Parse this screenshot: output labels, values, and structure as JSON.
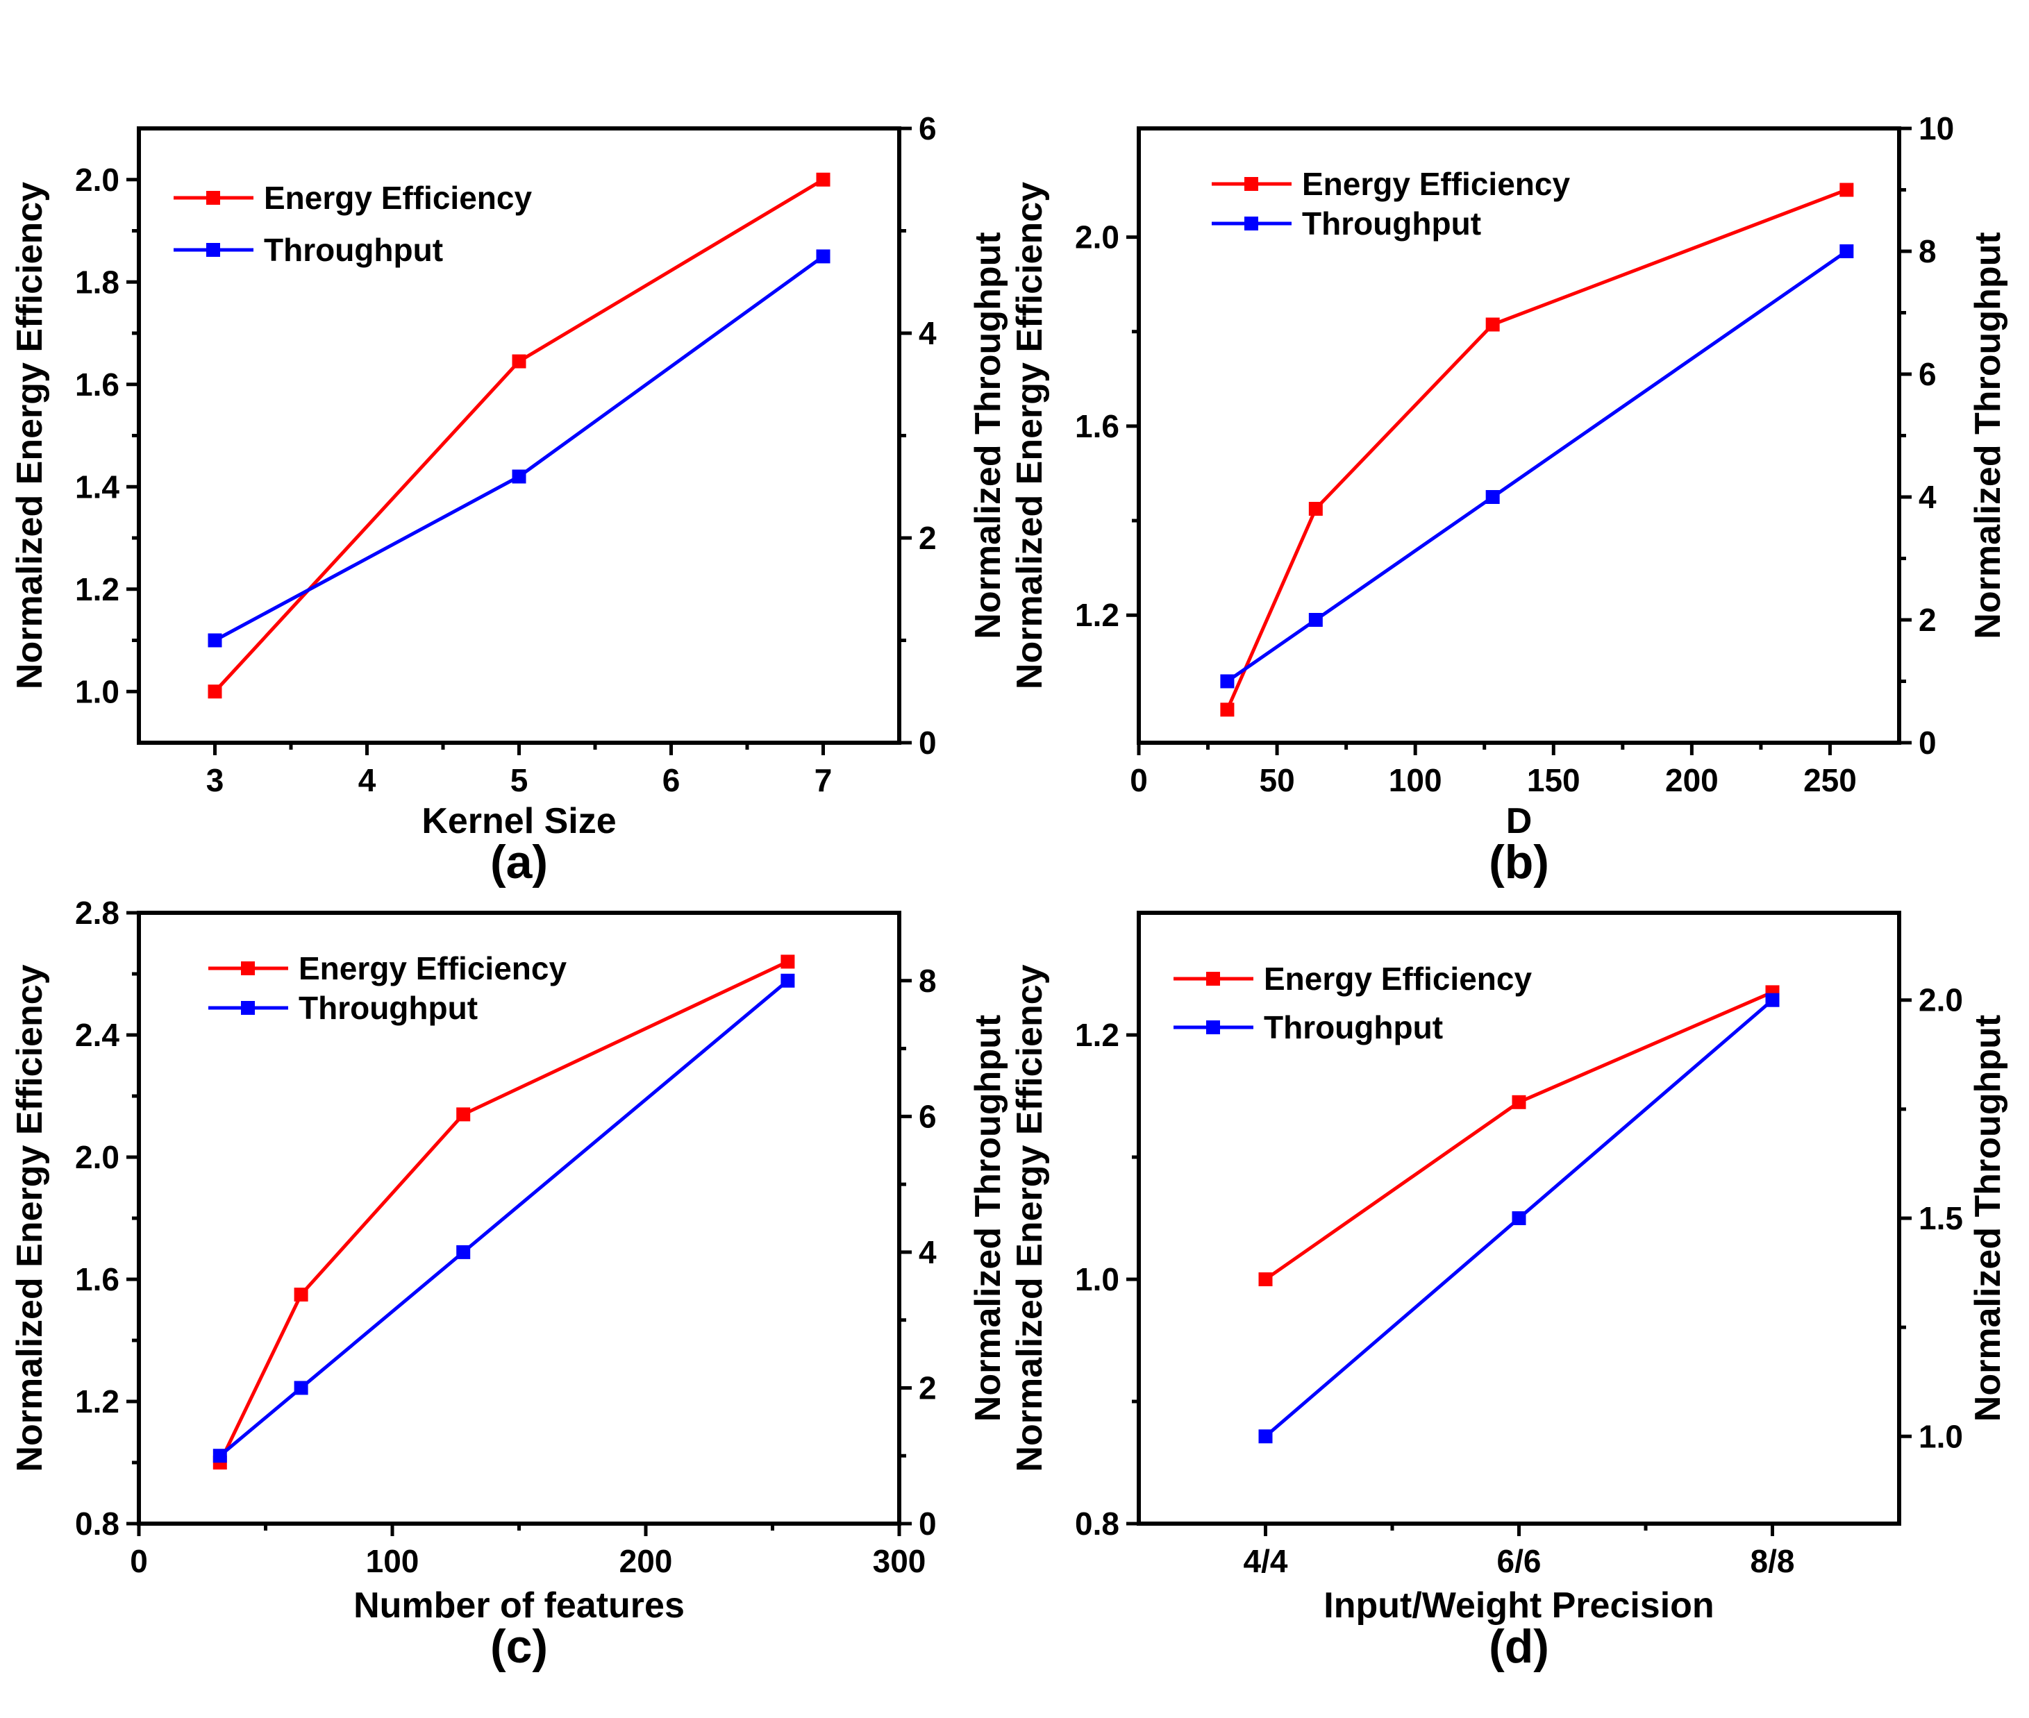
{
  "colors": {
    "energy": "#ff0000",
    "throughput": "#0000ff",
    "axis": "#000000"
  },
  "chart_data": [
    {
      "type": "line",
      "panel_label": "(a)",
      "xlabel": "Kernel Size",
      "ylabel_left": "Normalized Energy Efficiency",
      "ylabel_right": "Normalized Throughput",
      "xlim": [
        2.5,
        7.5
      ],
      "x_ticks": [
        3,
        4,
        5,
        6,
        7
      ],
      "x_tick_labels": [
        "3",
        "4",
        "5",
        "6",
        "7"
      ],
      "ylim_left": [
        0.9,
        2.1
      ],
      "y_ticks_left": [
        1.0,
        1.2,
        1.4,
        1.6,
        1.8,
        2.0
      ],
      "y_tick_labels_left": [
        "1.0",
        "1.2",
        "1.4",
        "1.6",
        "1.8",
        "2.0"
      ],
      "ylim_right": [
        0,
        6
      ],
      "y_ticks_right": [
        0,
        2,
        4,
        6
      ],
      "y_tick_labels_right": [
        "0",
        "2",
        "4",
        "6"
      ],
      "legend": [
        "Energy Efficiency",
        "Throughput"
      ],
      "series": [
        {
          "name": "Energy Efficiency",
          "axis": "left",
          "color": "#ff0000",
          "x": [
            3,
            5,
            7
          ],
          "values": [
            1.0,
            1.645,
            2.0
          ]
        },
        {
          "name": "Throughput",
          "axis": "right",
          "color": "#0000ff",
          "x": [
            3,
            5,
            7
          ],
          "values": [
            1.0,
            2.6,
            4.75
          ]
        }
      ]
    },
    {
      "type": "line",
      "panel_label": "(b)",
      "xlabel": "D",
      "ylabel_left": "Normalized Energy Efficiency",
      "ylabel_right": "Normalized Throughput",
      "xlim": [
        0,
        275
      ],
      "x_ticks": [
        0,
        50,
        100,
        150,
        200,
        250
      ],
      "x_tick_labels": [
        "0",
        "50",
        "100",
        "150",
        "200",
        "250"
      ],
      "ylim_left": [
        0.93,
        2.23
      ],
      "y_ticks_left": [
        1.2,
        1.6,
        2.0
      ],
      "y_tick_labels_left": [
        "1.2",
        "1.6",
        "2.0"
      ],
      "ylim_right": [
        0,
        10
      ],
      "y_ticks_right": [
        0,
        2,
        4,
        6,
        8,
        10
      ],
      "y_tick_labels_right": [
        "0",
        "2",
        "4",
        "6",
        "8",
        "10"
      ],
      "legend": [
        "Energy Efficiency",
        "Throughput"
      ],
      "series": [
        {
          "name": "Energy Efficiency",
          "axis": "left",
          "color": "#ff0000",
          "x": [
            32,
            64,
            128,
            256
          ],
          "values": [
            1.0,
            1.425,
            1.815,
            2.1
          ]
        },
        {
          "name": "Throughput",
          "axis": "right",
          "color": "#0000ff",
          "x": [
            32,
            64,
            128,
            256
          ],
          "values": [
            1.0,
            2.0,
            4.0,
            8.0
          ]
        }
      ]
    },
    {
      "type": "line",
      "panel_label": "(c)",
      "xlabel": "Number of features",
      "ylabel_left": "Normalized Energy Efficiency",
      "ylabel_right": "Normalized Throughput",
      "xlim": [
        0,
        300
      ],
      "x_ticks": [
        0,
        100,
        200,
        300
      ],
      "x_tick_labels": [
        "0",
        "100",
        "200",
        "300"
      ],
      "ylim_left": [
        0.8,
        2.8
      ],
      "y_ticks_left": [
        0.8,
        1.2,
        1.6,
        2.0,
        2.4,
        2.8
      ],
      "y_tick_labels_left": [
        "0.8",
        "1.2",
        "1.6",
        "2.0",
        "2.4",
        "2.8"
      ],
      "ylim_right": [
        0,
        9
      ],
      "y_ticks_right": [
        0,
        2,
        4,
        6,
        8
      ],
      "y_tick_labels_right": [
        "0",
        "2",
        "4",
        "6",
        "8"
      ],
      "legend": [
        "Energy Efficiency",
        "Throughput"
      ],
      "series": [
        {
          "name": "Energy Efficiency",
          "axis": "left",
          "color": "#ff0000",
          "x": [
            32,
            64,
            128,
            256
          ],
          "values": [
            1.0,
            1.55,
            2.14,
            2.64
          ]
        },
        {
          "name": "Throughput",
          "axis": "right",
          "color": "#0000ff",
          "x": [
            32,
            64,
            128,
            256
          ],
          "values": [
            1.0,
            2.0,
            4.0,
            8.0
          ]
        }
      ]
    },
    {
      "type": "line",
      "panel_label": "(d)",
      "xlabel": "Input/Weight Precision",
      "ylabel_left": "Normalized Energy Efficiency",
      "ylabel_right": "Normalized Throughput",
      "xlim": [
        -0.5,
        2.5
      ],
      "x_ticks": [
        0,
        1,
        2
      ],
      "x_tick_labels": [
        "4/4",
        "6/6",
        "8/8"
      ],
      "ylim_left": [
        0.8,
        1.3
      ],
      "y_ticks_left": [
        0.8,
        1.0,
        1.2
      ],
      "y_tick_labels_left": [
        "0.8",
        "1.0",
        "1.2"
      ],
      "ylim_right": [
        0.8,
        2.2
      ],
      "y_ticks_right": [
        1.0,
        1.5,
        2.0
      ],
      "y_tick_labels_right": [
        "1.0",
        "1.5",
        "2.0"
      ],
      "legend": [
        "Energy Efficiency",
        "Throughput"
      ],
      "series": [
        {
          "name": "Energy Efficiency",
          "axis": "left",
          "color": "#ff0000",
          "x": [
            0,
            1,
            2
          ],
          "values": [
            1.0,
            1.145,
            1.235
          ]
        },
        {
          "name": "Throughput",
          "axis": "right",
          "color": "#0000ff",
          "x": [
            0,
            1,
            2
          ],
          "values": [
            1.0,
            1.5,
            2.0
          ]
        }
      ]
    }
  ]
}
